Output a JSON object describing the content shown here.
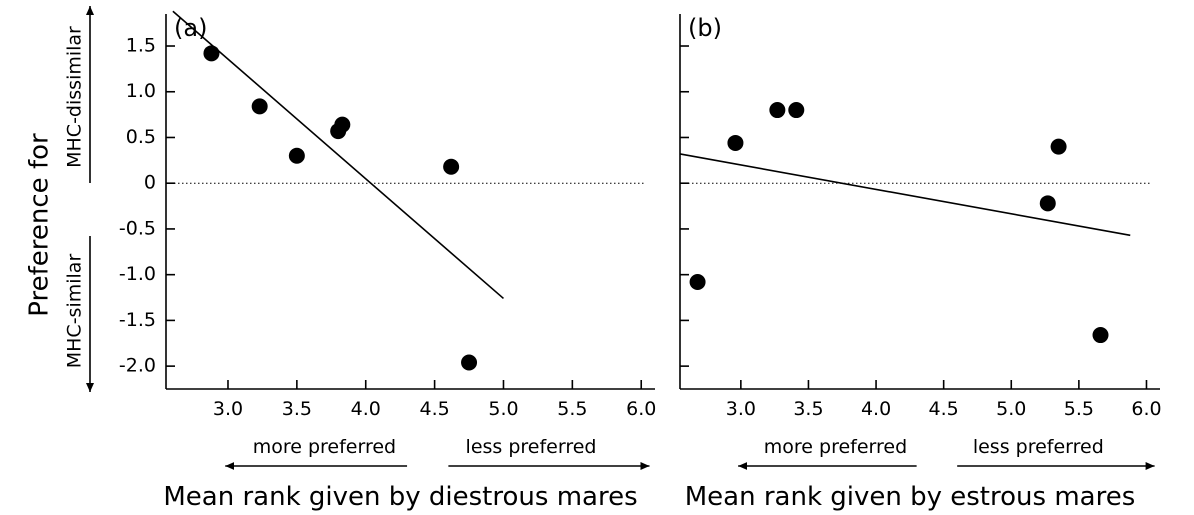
{
  "y_title": "Preference for",
  "y_upper_label": "MHC-dissimilar",
  "y_lower_label": "MHC-similar",
  "colors": {
    "ink": "#000000",
    "background": "#ffffff"
  },
  "chart_data": [
    {
      "type": "scatter",
      "panel_label": "(a)",
      "xlabel": "Mean rank given by diestrous mares",
      "xlim": [
        2.55,
        6.1
      ],
      "ylim": [
        -2.25,
        1.85
      ],
      "xticks": [
        3.0,
        3.5,
        4.0,
        4.5,
        5.0,
        5.5,
        6.0
      ],
      "xtick_labels": [
        "3.0",
        "3.5",
        "4.0",
        "4.5",
        "5.0",
        "5.5",
        "6.0"
      ],
      "yticks": [
        1.5,
        1.0,
        0.5,
        0,
        -0.5,
        -1.0,
        -1.5,
        -2.0
      ],
      "ytick_labels": [
        "1.5",
        "1.0",
        "0.5",
        "0",
        "-0.5",
        "-1.0",
        "-1.5",
        "-2.0"
      ],
      "points": [
        {
          "x": 2.88,
          "y": 1.42
        },
        {
          "x": 3.23,
          "y": 0.84
        },
        {
          "x": 3.5,
          "y": 0.3
        },
        {
          "x": 3.8,
          "y": 0.57
        },
        {
          "x": 3.83,
          "y": 0.64
        },
        {
          "x": 4.62,
          "y": 0.18
        },
        {
          "x": 4.75,
          "y": -1.96
        }
      ],
      "trend_line": {
        "x": [
          2.6,
          5.0
        ],
        "y": [
          1.88,
          -1.26
        ]
      },
      "reference_line_y": 0,
      "left_direction_label": "more preferred",
      "right_direction_label": "less preferred"
    },
    {
      "type": "scatter",
      "panel_label": "(b)",
      "xlabel": "Mean rank given by estrous mares",
      "xlim": [
        2.55,
        6.1
      ],
      "ylim": [
        -2.25,
        1.85
      ],
      "xticks": [
        3.0,
        3.5,
        4.0,
        4.5,
        5.0,
        5.5,
        6.0
      ],
      "xtick_labels": [
        "3.0",
        "3.5",
        "4.0",
        "4.5",
        "5.0",
        "5.5",
        "6.0"
      ],
      "yticks": [
        1.5,
        1.0,
        0.5,
        0,
        -0.5,
        -1.0,
        -1.5,
        -2.0
      ],
      "points": [
        {
          "x": 2.68,
          "y": -1.08
        },
        {
          "x": 2.96,
          "y": 0.44
        },
        {
          "x": 3.27,
          "y": 0.8
        },
        {
          "x": 3.41,
          "y": 0.8
        },
        {
          "x": 5.27,
          "y": -0.22
        },
        {
          "x": 5.35,
          "y": 0.4
        },
        {
          "x": 5.66,
          "y": -1.66
        }
      ],
      "trend_line": {
        "x": [
          2.55,
          5.88
        ],
        "y": [
          0.32,
          -0.57
        ]
      },
      "reference_line_y": 0,
      "left_direction_label": "more preferred",
      "right_direction_label": "less preferred"
    }
  ]
}
